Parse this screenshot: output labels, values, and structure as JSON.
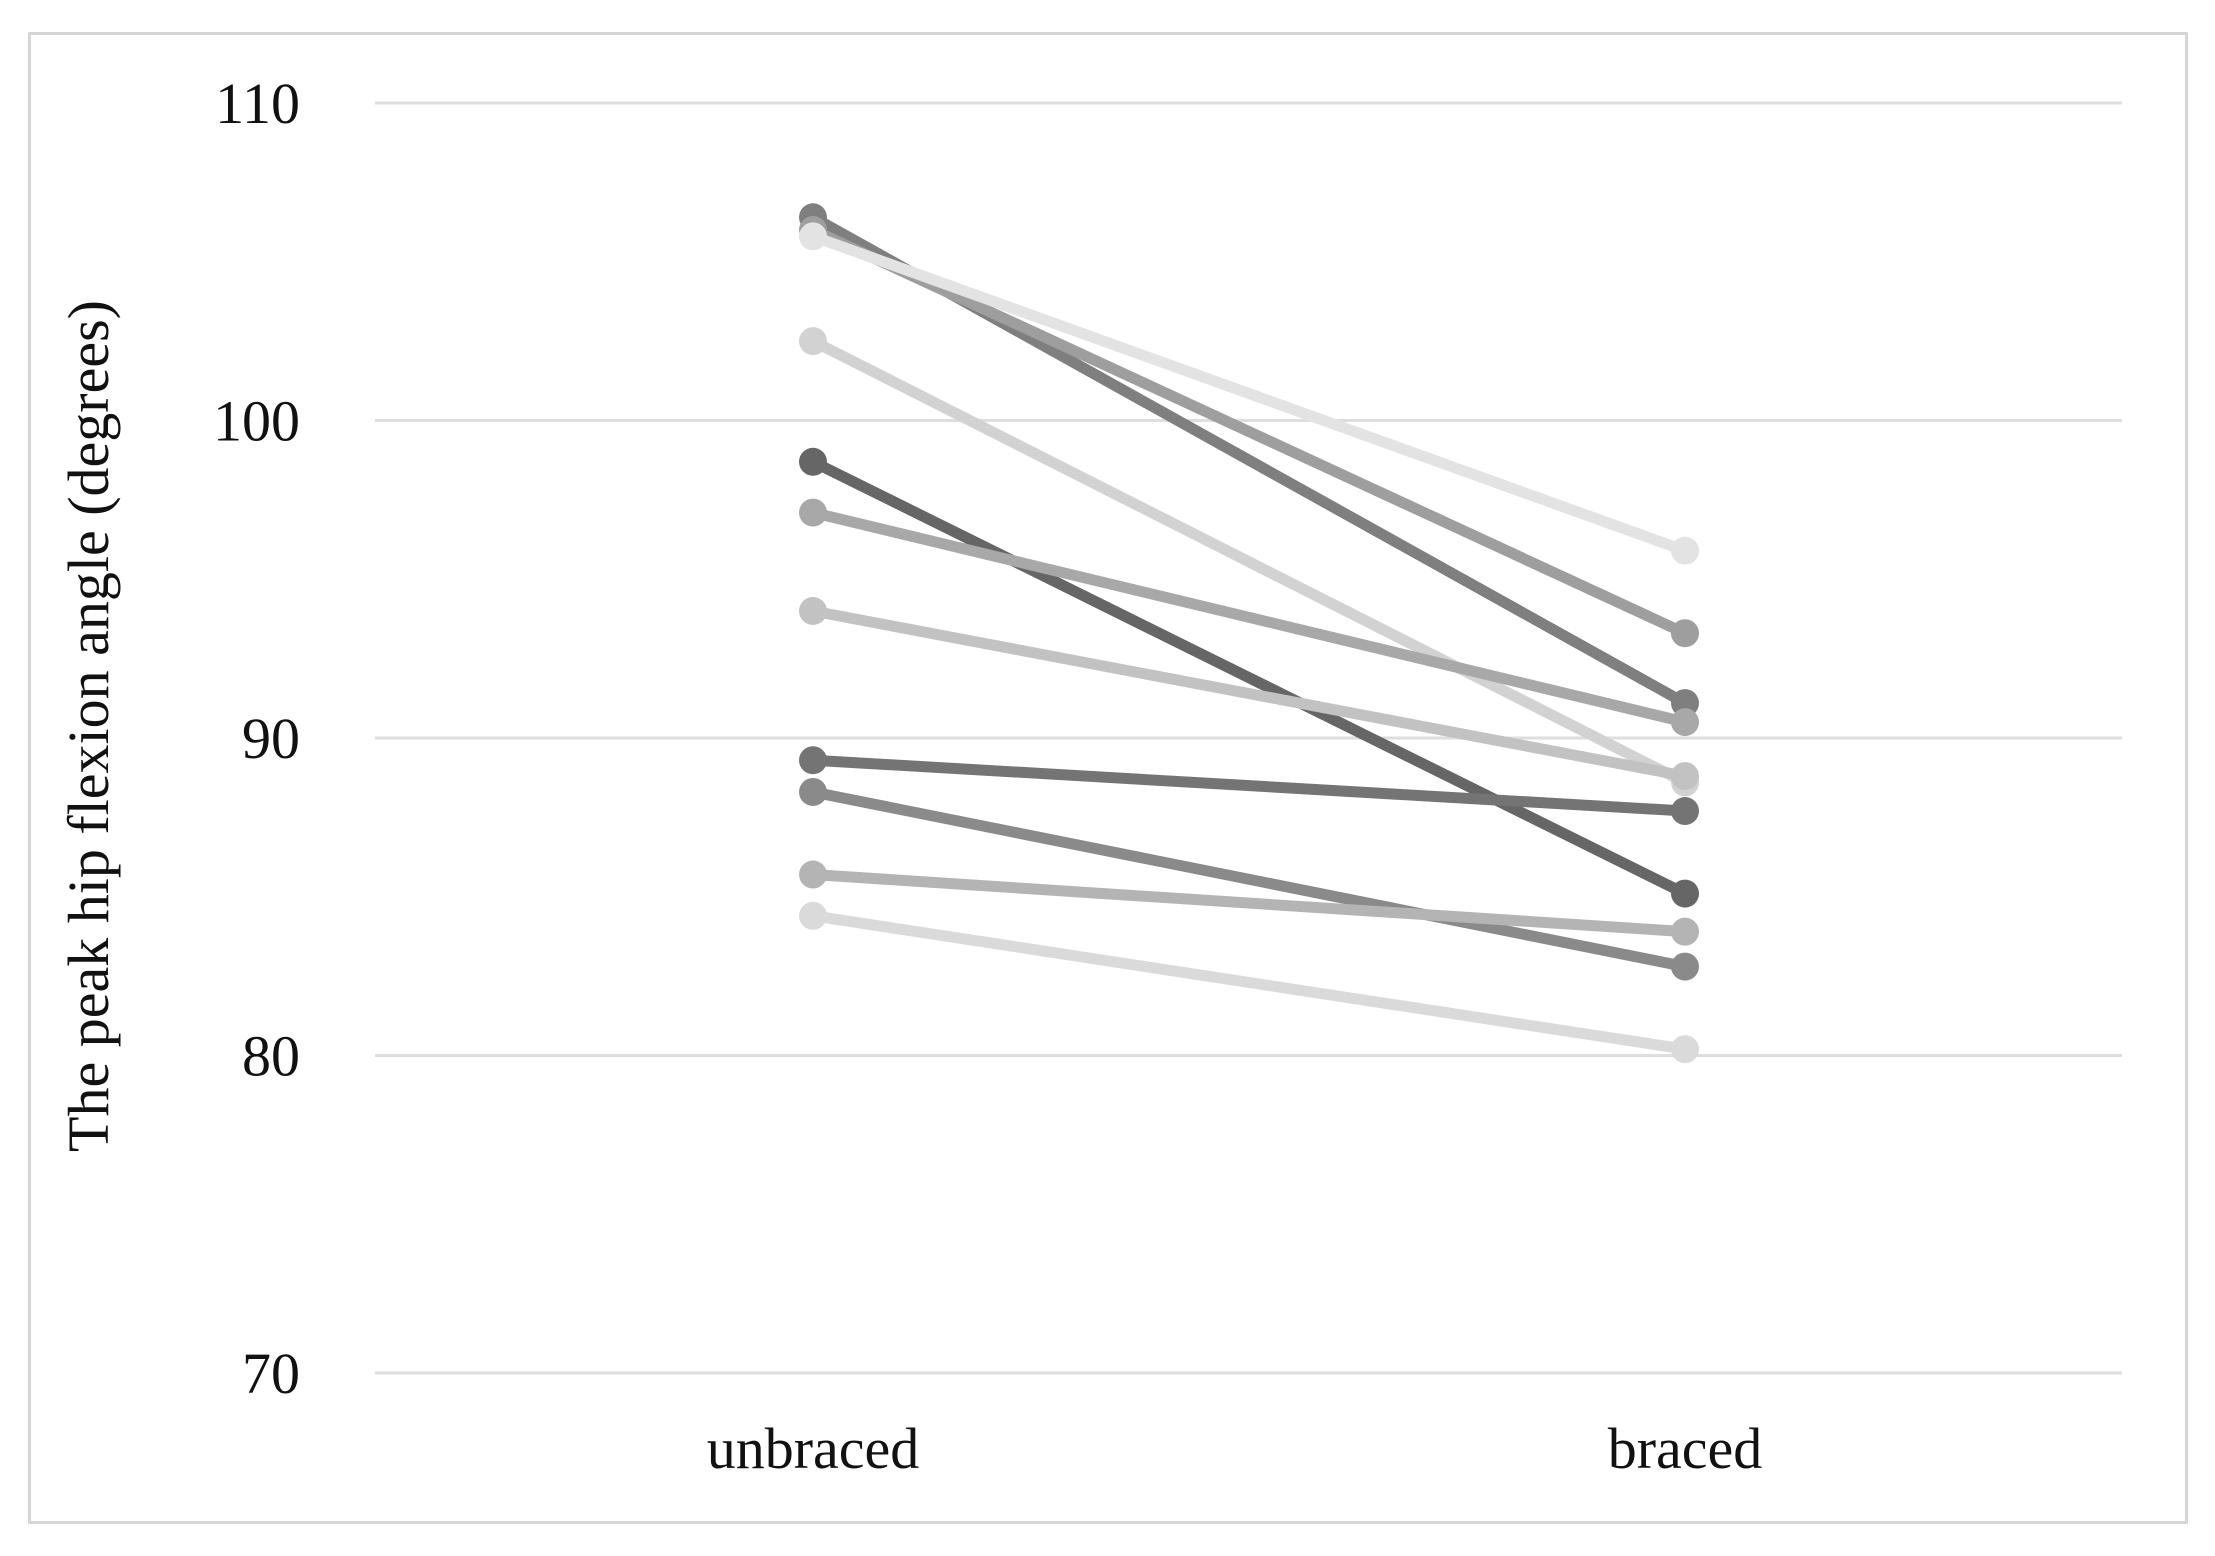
{
  "chart_data": {
    "type": "line",
    "title": "",
    "xlabel": "",
    "ylabel": "The peak hip flexion angle (degrees)",
    "categories": [
      "unbraced",
      "braced"
    ],
    "ylim": [
      70,
      110
    ],
    "yticks": [
      70,
      80,
      90,
      100,
      110
    ],
    "grid": true,
    "legend": "none",
    "series": [
      {
        "values": [
          106.4,
          91.1
        ],
        "color": "#7f7f7f"
      },
      {
        "values": [
          106.0,
          93.3
        ],
        "color": "#9e9e9e"
      },
      {
        "values": [
          105.8,
          95.9
        ],
        "color": "#e3e3e3"
      },
      {
        "values": [
          102.5,
          88.6
        ],
        "color": "#d2d2d2"
      },
      {
        "values": [
          98.7,
          85.1
        ],
        "color": "#666666"
      },
      {
        "values": [
          97.1,
          90.5
        ],
        "color": "#a8a8a8"
      },
      {
        "values": [
          94.0,
          88.8
        ],
        "color": "#c2c2c2"
      },
      {
        "values": [
          89.3,
          87.7
        ],
        "color": "#747474"
      },
      {
        "values": [
          88.3,
          82.8
        ],
        "color": "#8a8a8a"
      },
      {
        "values": [
          85.7,
          83.9
        ],
        "color": "#b4b4b4"
      },
      {
        "values": [
          84.4,
          80.2
        ],
        "color": "#dadada"
      }
    ]
  }
}
